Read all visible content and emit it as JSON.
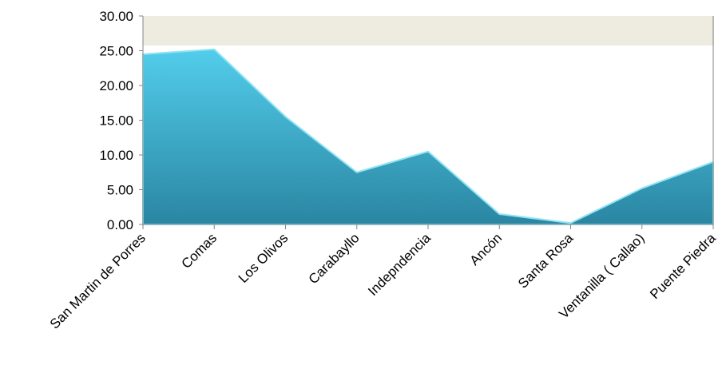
{
  "chart_data": {
    "type": "area",
    "categories": [
      "San Martin de Porres",
      "Comas",
      "Los Olivos",
      "Carabayllo",
      "Indepndencia",
      "Ancón",
      "Santa Rosa",
      "Ventanilla ( Callao)",
      "Puente Piedra"
    ],
    "values": [
      24.5,
      25.2,
      15.5,
      7.5,
      10.5,
      1.5,
      0.2,
      5.2,
      9.0
    ],
    "color": "#3bb4d6",
    "ylim": [
      0,
      30
    ],
    "yticks": [
      {
        "value": 0,
        "label": "0.00"
      },
      {
        "value": 5,
        "label": "5.00"
      },
      {
        "value": 10,
        "label": "10.00"
      },
      {
        "value": 15,
        "label": "15.00"
      },
      {
        "value": 20,
        "label": "20.00"
      },
      {
        "value": 25,
        "label": "25.00"
      },
      {
        "value": 30,
        "label": "30.00"
      }
    ],
    "grid": false
  }
}
